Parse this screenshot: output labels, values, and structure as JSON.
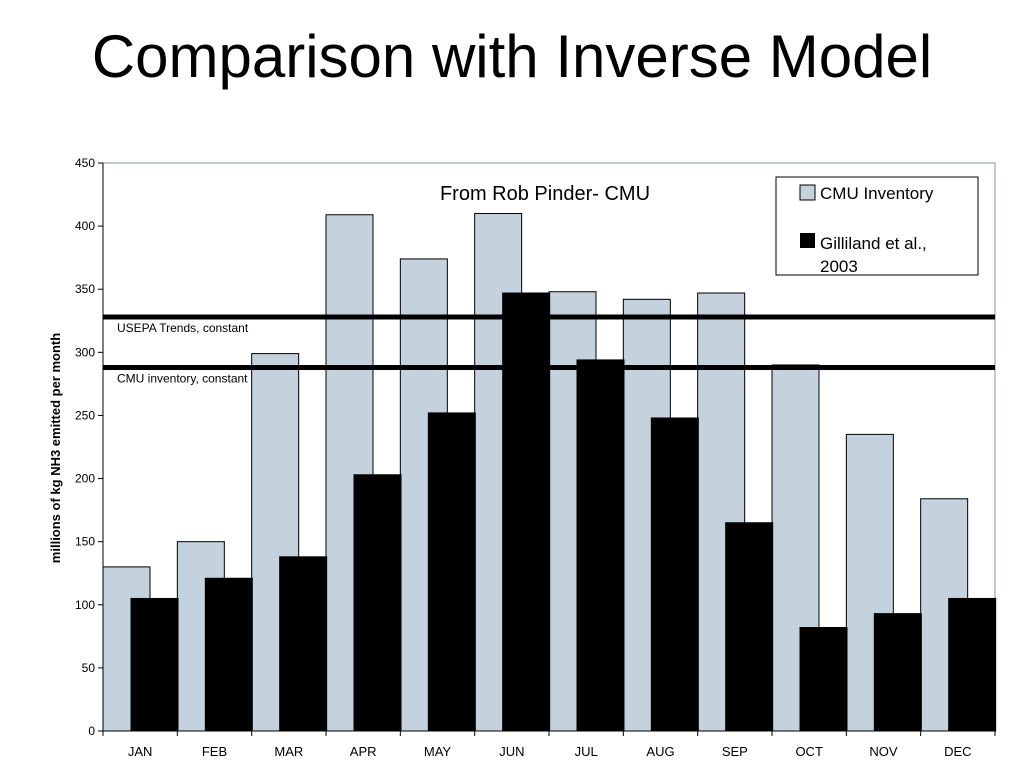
{
  "slide": {
    "title": "Comparison with Inverse Model"
  },
  "chart_data": {
    "type": "bar",
    "title": "",
    "annotation": "From Rob Pinder- CMU",
    "xlabel": "",
    "ylabel": "millions of kg NH3 emitted per month",
    "ylim": [
      0,
      450
    ],
    "yticks": [
      0,
      50,
      100,
      150,
      200,
      250,
      300,
      350,
      400,
      450
    ],
    "categories": [
      "JAN",
      "FEB",
      "MAR",
      "APR",
      "MAY",
      "JUN",
      "JUL",
      "AUG",
      "SEP",
      "OCT",
      "NOV",
      "DEC"
    ],
    "series": [
      {
        "name": "CMU Inventory",
        "color": "#c3d2dc",
        "values": [
          130,
          150,
          299,
          409,
          374,
          410,
          348,
          342,
          347,
          290,
          235,
          184
        ]
      },
      {
        "name": "Gilliland et al., 2003",
        "color": "#000000",
        "values": [
          105,
          121,
          138,
          203,
          252,
          347,
          294,
          248,
          165,
          82,
          93,
          105
        ]
      }
    ],
    "reference_lines": [
      {
        "label": "USEPA Trends, constant",
        "value": 328
      },
      {
        "label": "CMU inventory, constant",
        "value": 288
      }
    ],
    "legend": {
      "position": "top-right",
      "entries": [
        "CMU Inventory",
        "Gilliland et al., 2003"
      ]
    },
    "grid": false
  }
}
